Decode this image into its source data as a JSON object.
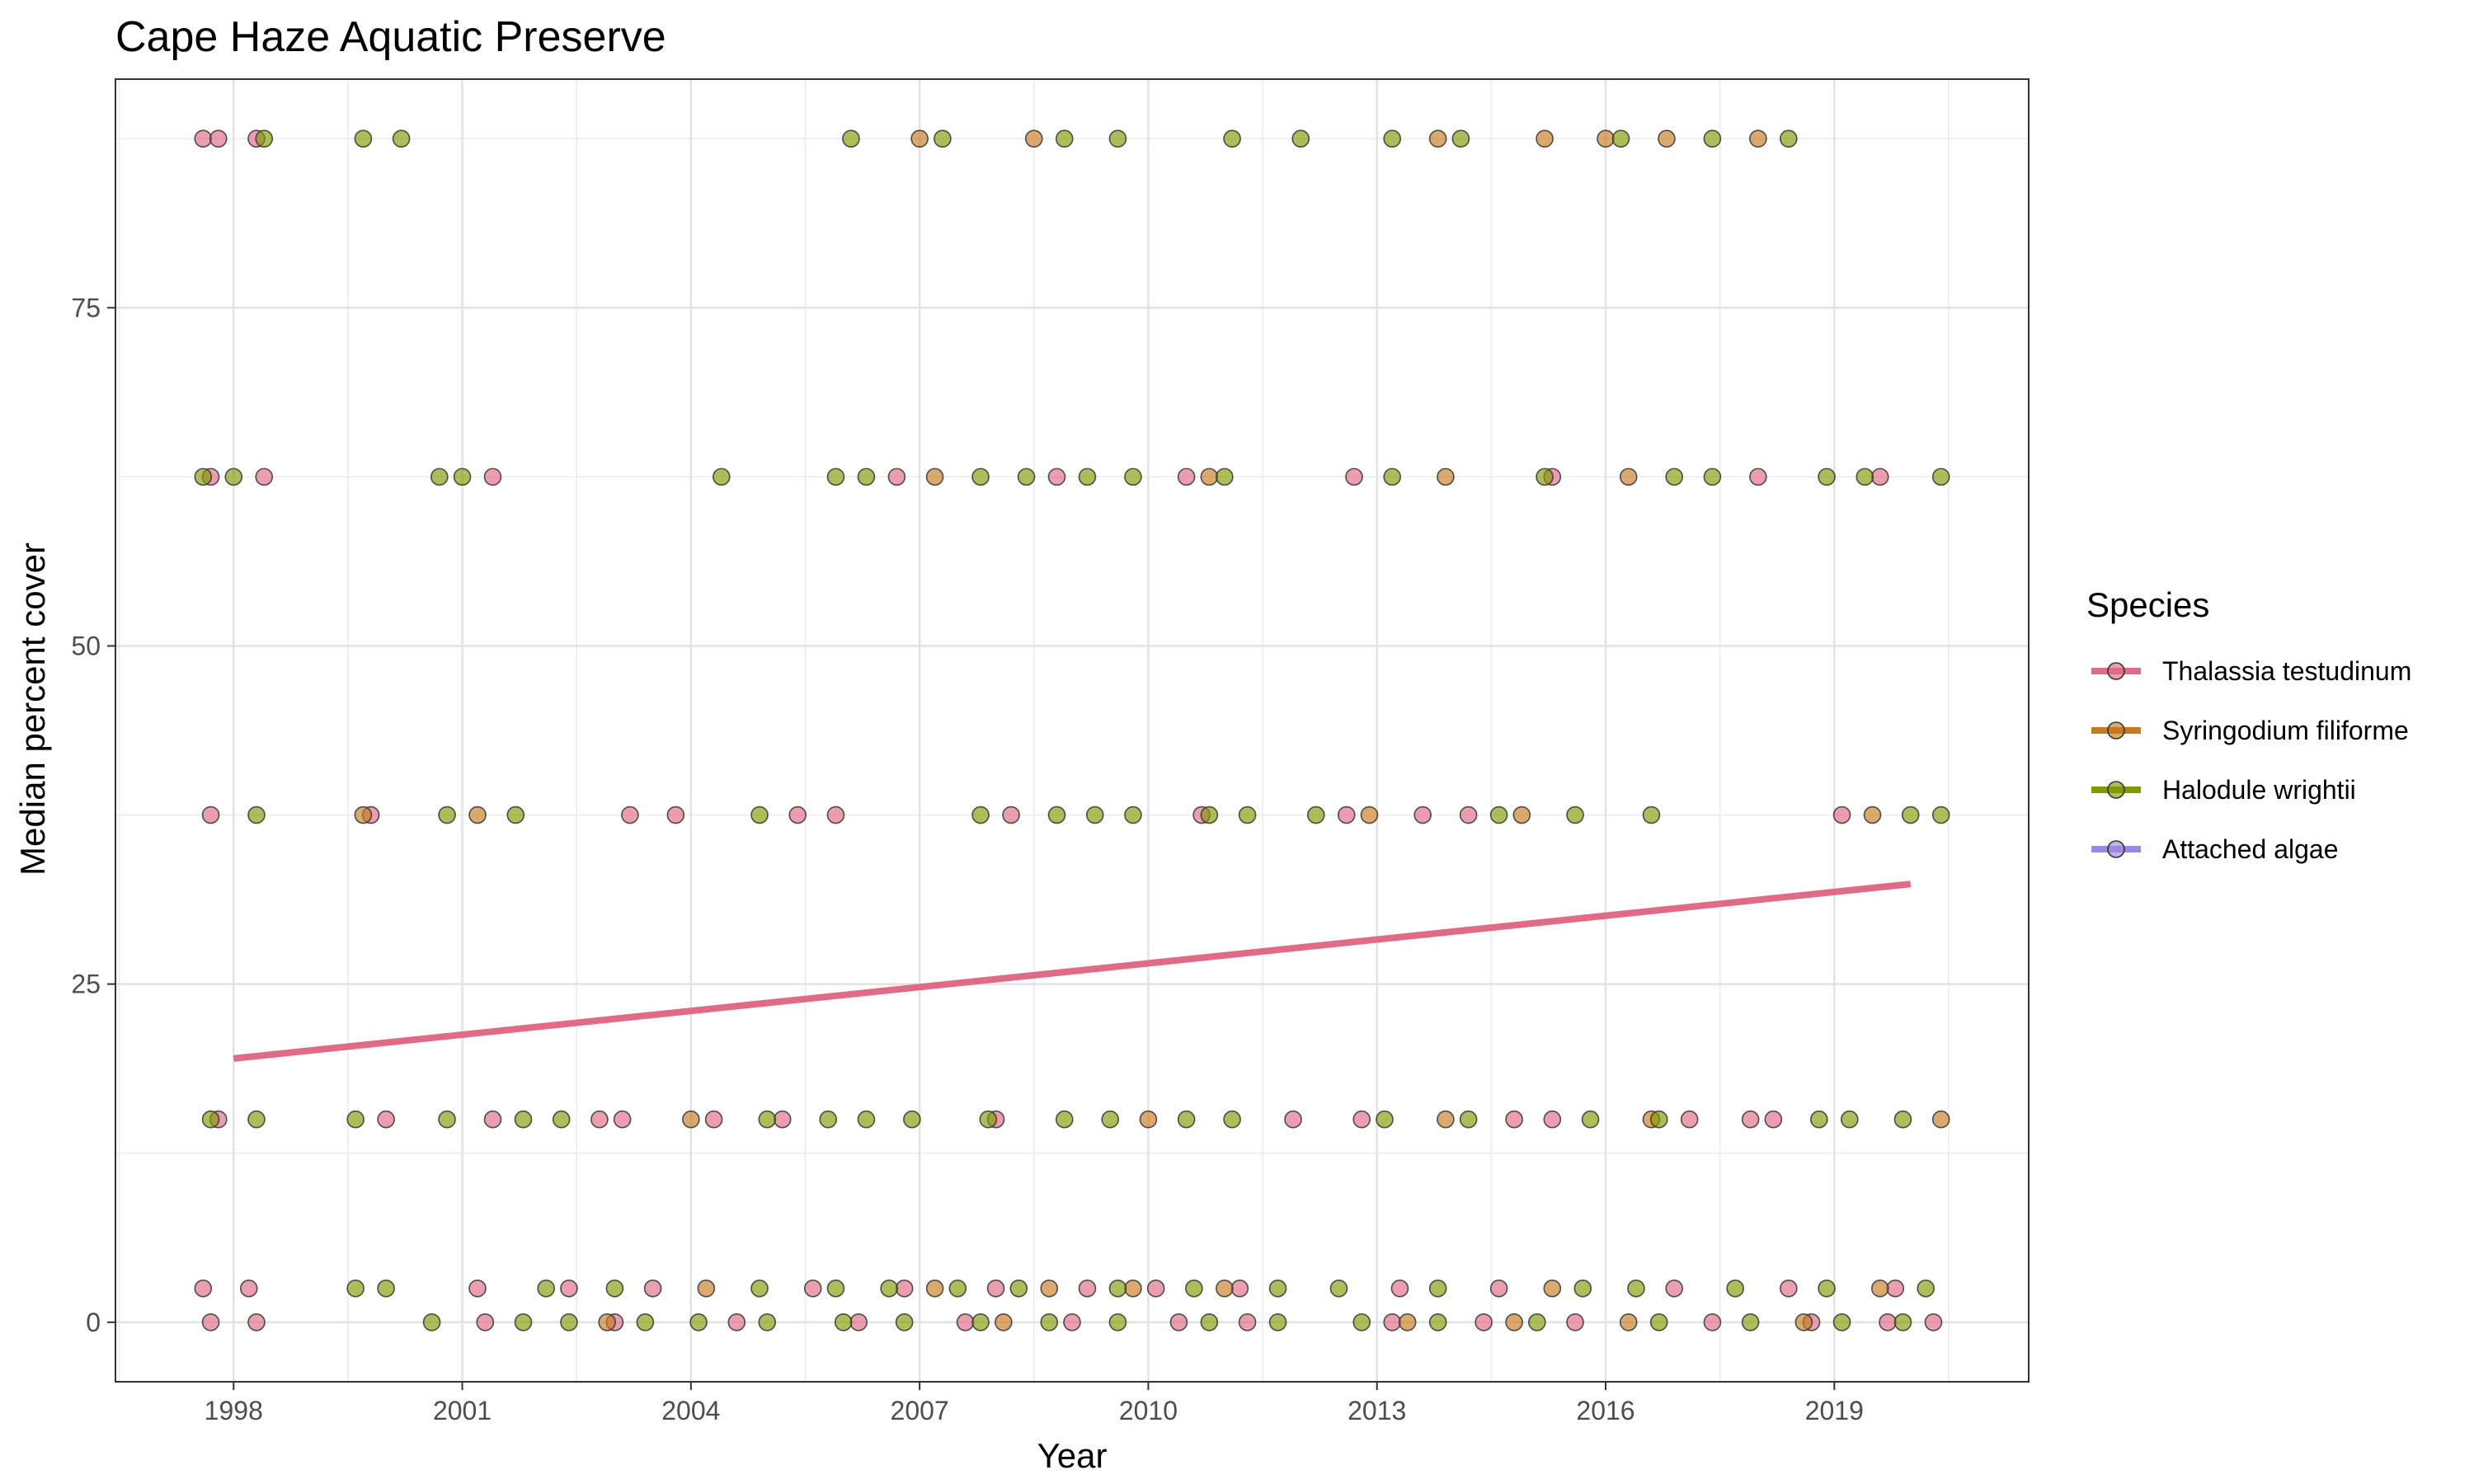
{
  "chart_data": {
    "type": "scatter",
    "title": "Cape Haze Aquatic Preserve",
    "xlabel": "Year",
    "ylabel": "Median percent cover",
    "xlim": [
      1996.45,
      2021.55
    ],
    "ylim": [
      -4.4,
      91.9
    ],
    "x_ticks": [
      1998,
      2001,
      2004,
      2007,
      2010,
      2013,
      2016,
      2019
    ],
    "y_ticks": [
      0,
      25,
      50,
      75
    ],
    "grid": true,
    "legend": {
      "title": "Species",
      "placement": "right",
      "entries": [
        {
          "name": "Thalassia testudinum",
          "color": "#E16A86"
        },
        {
          "name": "Syringodium filiforme",
          "color": "#C87A1E"
        },
        {
          "name": "Halodule wrightii",
          "color": "#7F9A00"
        },
        {
          "name": "Attached algae",
          "color": "#9B88E0"
        }
      ]
    },
    "point_levels": [
      0,
      2.5,
      15,
      37.5,
      62.5,
      87.5
    ],
    "trend_line": {
      "series": "Thalassia testudinum",
      "color": "#E16A86",
      "x": [
        1998,
        2020
      ],
      "y": [
        19.5,
        32.4
      ]
    },
    "series": [
      {
        "name": "Thalassia testudinum",
        "color": "#E16A86",
        "points": [
          [
            1997.6,
            87.5
          ],
          [
            1997.8,
            87.5
          ],
          [
            1998.3,
            87.5
          ],
          [
            1997.7,
            62.5
          ],
          [
            1998.4,
            62.5
          ],
          [
            2001.4,
            62.5
          ],
          [
            2006.7,
            62.5
          ],
          [
            2008.8,
            62.5
          ],
          [
            2010.5,
            62.5
          ],
          [
            2012.7,
            62.5
          ],
          [
            2015.3,
            62.5
          ],
          [
            2018.0,
            62.5
          ],
          [
            2019.6,
            62.5
          ],
          [
            1997.7,
            37.5
          ],
          [
            1999.8,
            37.5
          ],
          [
            2003.2,
            37.5
          ],
          [
            2003.8,
            37.5
          ],
          [
            2005.4,
            37.5
          ],
          [
            2005.9,
            37.5
          ],
          [
            2008.2,
            37.5
          ],
          [
            2010.7,
            37.5
          ],
          [
            2012.6,
            37.5
          ],
          [
            2013.6,
            37.5
          ],
          [
            2014.2,
            37.5
          ],
          [
            2019.1,
            37.5
          ],
          [
            1997.8,
            15
          ],
          [
            2000.0,
            15
          ],
          [
            2001.4,
            15
          ],
          [
            2002.8,
            15
          ],
          [
            2003.1,
            15
          ],
          [
            2004.3,
            15
          ],
          [
            2005.2,
            15
          ],
          [
            2008.0,
            15
          ],
          [
            2011.9,
            15
          ],
          [
            2012.8,
            15
          ],
          [
            2014.8,
            15
          ],
          [
            2015.3,
            15
          ],
          [
            2017.1,
            15
          ],
          [
            2017.9,
            15
          ],
          [
            2018.2,
            15
          ],
          [
            1997.6,
            2.5
          ],
          [
            1998.2,
            2.5
          ],
          [
            2001.2,
            2.5
          ],
          [
            2002.4,
            2.5
          ],
          [
            2003.5,
            2.5
          ],
          [
            2005.6,
            2.5
          ],
          [
            2006.8,
            2.5
          ],
          [
            2008.0,
            2.5
          ],
          [
            2009.2,
            2.5
          ],
          [
            2010.1,
            2.5
          ],
          [
            2011.2,
            2.5
          ],
          [
            2013.3,
            2.5
          ],
          [
            2014.6,
            2.5
          ],
          [
            2016.9,
            2.5
          ],
          [
            2018.4,
            2.5
          ],
          [
            2019.8,
            2.5
          ],
          [
            1997.7,
            0
          ],
          [
            1998.3,
            0
          ],
          [
            2001.3,
            0
          ],
          [
            2003.0,
            0
          ],
          [
            2004.6,
            0
          ],
          [
            2006.2,
            0
          ],
          [
            2007.6,
            0
          ],
          [
            2009.0,
            0
          ],
          [
            2010.4,
            0
          ],
          [
            2011.3,
            0
          ],
          [
            2013.2,
            0
          ],
          [
            2014.4,
            0
          ],
          [
            2015.6,
            0
          ],
          [
            2017.4,
            0
          ],
          [
            2018.7,
            0
          ],
          [
            2019.7,
            0
          ],
          [
            2020.3,
            0
          ]
        ]
      },
      {
        "name": "Syringodium filiforme",
        "color": "#C87A1E",
        "points": [
          [
            2007.0,
            87.5
          ],
          [
            2008.5,
            87.5
          ],
          [
            2013.8,
            87.5
          ],
          [
            2015.2,
            87.5
          ],
          [
            2016.0,
            87.5
          ],
          [
            2016.8,
            87.5
          ],
          [
            2018.0,
            87.5
          ],
          [
            2007.2,
            62.5
          ],
          [
            2010.8,
            62.5
          ],
          [
            2013.9,
            62.5
          ],
          [
            2016.3,
            62.5
          ],
          [
            1999.7,
            37.5
          ],
          [
            2001.2,
            37.5
          ],
          [
            2012.9,
            37.5
          ],
          [
            2014.9,
            37.5
          ],
          [
            2019.5,
            37.5
          ],
          [
            2004.0,
            15
          ],
          [
            2010.0,
            15
          ],
          [
            2013.9,
            15
          ],
          [
            2016.6,
            15
          ],
          [
            2020.4,
            15
          ],
          [
            2004.2,
            2.5
          ],
          [
            2007.2,
            2.5
          ],
          [
            2008.7,
            2.5
          ],
          [
            2009.8,
            2.5
          ],
          [
            2011.0,
            2.5
          ],
          [
            2015.3,
            2.5
          ],
          [
            2019.6,
            2.5
          ],
          [
            2002.9,
            0
          ],
          [
            2008.1,
            0
          ],
          [
            2013.4,
            0
          ],
          [
            2014.8,
            0
          ],
          [
            2016.3,
            0
          ],
          [
            2018.6,
            0
          ]
        ]
      },
      {
        "name": "Halodule wrightii",
        "color": "#7F9A00",
        "points": [
          [
            1998.4,
            87.5
          ],
          [
            1999.7,
            87.5
          ],
          [
            2000.2,
            87.5
          ],
          [
            2006.1,
            87.5
          ],
          [
            2007.3,
            87.5
          ],
          [
            2008.9,
            87.5
          ],
          [
            2009.6,
            87.5
          ],
          [
            2011.1,
            87.5
          ],
          [
            2012.0,
            87.5
          ],
          [
            2013.2,
            87.5
          ],
          [
            2014.1,
            87.5
          ],
          [
            2016.2,
            87.5
          ],
          [
            2017.4,
            87.5
          ],
          [
            2018.4,
            87.5
          ],
          [
            1997.6,
            62.5
          ],
          [
            1998.0,
            62.5
          ],
          [
            2000.7,
            62.5
          ],
          [
            2001.0,
            62.5
          ],
          [
            2004.4,
            62.5
          ],
          [
            2005.9,
            62.5
          ],
          [
            2006.3,
            62.5
          ],
          [
            2007.8,
            62.5
          ],
          [
            2008.4,
            62.5
          ],
          [
            2009.2,
            62.5
          ],
          [
            2009.8,
            62.5
          ],
          [
            2011.0,
            62.5
          ],
          [
            2013.2,
            62.5
          ],
          [
            2015.2,
            62.5
          ],
          [
            2016.9,
            62.5
          ],
          [
            2017.4,
            62.5
          ],
          [
            2018.9,
            62.5
          ],
          [
            2019.4,
            62.5
          ],
          [
            2020.4,
            62.5
          ],
          [
            1998.3,
            37.5
          ],
          [
            2000.8,
            37.5
          ],
          [
            2001.7,
            37.5
          ],
          [
            2004.9,
            37.5
          ],
          [
            2007.8,
            37.5
          ],
          [
            2008.8,
            37.5
          ],
          [
            2009.3,
            37.5
          ],
          [
            2009.8,
            37.5
          ],
          [
            2010.8,
            37.5
          ],
          [
            2011.3,
            37.5
          ],
          [
            2012.2,
            37.5
          ],
          [
            2014.6,
            37.5
          ],
          [
            2015.6,
            37.5
          ],
          [
            2016.6,
            37.5
          ],
          [
            2020.0,
            37.5
          ],
          [
            2020.4,
            37.5
          ],
          [
            1997.7,
            15
          ],
          [
            1998.3,
            15
          ],
          [
            1999.6,
            15
          ],
          [
            2000.8,
            15
          ],
          [
            2001.8,
            15
          ],
          [
            2002.3,
            15
          ],
          [
            2005.0,
            15
          ],
          [
            2005.8,
            15
          ],
          [
            2006.3,
            15
          ],
          [
            2006.9,
            15
          ],
          [
            2007.9,
            15
          ],
          [
            2008.9,
            15
          ],
          [
            2009.5,
            15
          ],
          [
            2010.5,
            15
          ],
          [
            2011.1,
            15
          ],
          [
            2013.1,
            15
          ],
          [
            2014.2,
            15
          ],
          [
            2015.8,
            15
          ],
          [
            2016.7,
            15
          ],
          [
            2018.8,
            15
          ],
          [
            2019.2,
            15
          ],
          [
            2019.9,
            15
          ],
          [
            1999.6,
            2.5
          ],
          [
            2000.0,
            2.5
          ],
          [
            2002.1,
            2.5
          ],
          [
            2003.0,
            2.5
          ],
          [
            2004.9,
            2.5
          ],
          [
            2005.9,
            2.5
          ],
          [
            2006.6,
            2.5
          ],
          [
            2007.5,
            2.5
          ],
          [
            2008.3,
            2.5
          ],
          [
            2009.6,
            2.5
          ],
          [
            2010.6,
            2.5
          ],
          [
            2011.7,
            2.5
          ],
          [
            2012.5,
            2.5
          ],
          [
            2013.8,
            2.5
          ],
          [
            2015.7,
            2.5
          ],
          [
            2016.4,
            2.5
          ],
          [
            2017.7,
            2.5
          ],
          [
            2018.9,
            2.5
          ],
          [
            2020.2,
            2.5
          ],
          [
            2000.6,
            0
          ],
          [
            2001.8,
            0
          ],
          [
            2002.4,
            0
          ],
          [
            2003.4,
            0
          ],
          [
            2004.1,
            0
          ],
          [
            2005.0,
            0
          ],
          [
            2006.0,
            0
          ],
          [
            2006.8,
            0
          ],
          [
            2007.8,
            0
          ],
          [
            2008.7,
            0
          ],
          [
            2009.6,
            0
          ],
          [
            2010.8,
            0
          ],
          [
            2011.7,
            0
          ],
          [
            2012.8,
            0
          ],
          [
            2013.8,
            0
          ],
          [
            2015.1,
            0
          ],
          [
            2016.7,
            0
          ],
          [
            2017.9,
            0
          ],
          [
            2019.1,
            0
          ],
          [
            2019.9,
            0
          ]
        ]
      },
      {
        "name": "Attached algae",
        "color": "#9B88E0",
        "points": []
      }
    ]
  }
}
